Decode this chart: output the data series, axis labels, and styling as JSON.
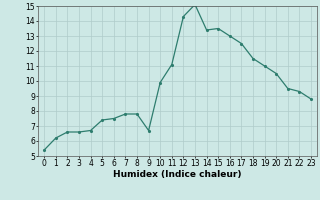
{
  "x": [
    0,
    1,
    2,
    3,
    4,
    5,
    6,
    7,
    8,
    9,
    10,
    11,
    12,
    13,
    14,
    15,
    16,
    17,
    18,
    19,
    20,
    21,
    22,
    23
  ],
  "y": [
    5.4,
    6.2,
    6.6,
    6.6,
    6.7,
    7.4,
    7.5,
    7.8,
    7.8,
    6.7,
    9.9,
    11.1,
    14.3,
    15.1,
    13.4,
    13.5,
    13.0,
    12.5,
    11.5,
    11.0,
    10.5,
    9.5,
    9.3,
    8.8
  ],
  "xlabel": "Humidex (Indice chaleur)",
  "ylim": [
    5,
    15
  ],
  "xlim": [
    -0.5,
    23.5
  ],
  "yticks": [
    5,
    6,
    7,
    8,
    9,
    10,
    11,
    12,
    13,
    14,
    15
  ],
  "xticks": [
    0,
    1,
    2,
    3,
    4,
    5,
    6,
    7,
    8,
    9,
    10,
    11,
    12,
    13,
    14,
    15,
    16,
    17,
    18,
    19,
    20,
    21,
    22,
    23
  ],
  "line_color": "#2e7d6e",
  "bg_color": "#cde8e5",
  "grid_color": "#b0ccca",
  "tick_fontsize": 5.5,
  "label_fontsize": 6.5
}
